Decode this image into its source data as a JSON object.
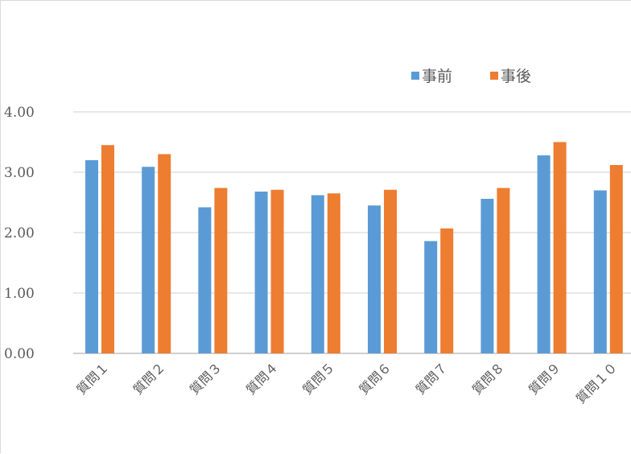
{
  "chart_data": {
    "type": "bar",
    "categories": [
      "質問１",
      "質問２",
      "質問３",
      "質問４",
      "質問５",
      "質問６",
      "質問７",
      "質問８",
      "質問９",
      "質問１０"
    ],
    "series": [
      {
        "name": "事前",
        "color": "#5b9bd5",
        "values": [
          3.2,
          3.09,
          2.42,
          2.68,
          2.62,
          2.45,
          1.86,
          2.56,
          3.28,
          2.7
        ]
      },
      {
        "name": "事後",
        "color": "#ed7d31",
        "values": [
          3.45,
          3.3,
          2.74,
          2.71,
          2.65,
          2.71,
          2.07,
          2.74,
          3.5,
          3.12
        ]
      }
    ],
    "y_ticks": [
      "0.00",
      "1.00",
      "2.00",
      "3.00",
      "4.00"
    ],
    "ylim": [
      0,
      4
    ],
    "grid": true,
    "legend_position": "top-right",
    "title": "",
    "xlabel": "",
    "ylabel": ""
  }
}
